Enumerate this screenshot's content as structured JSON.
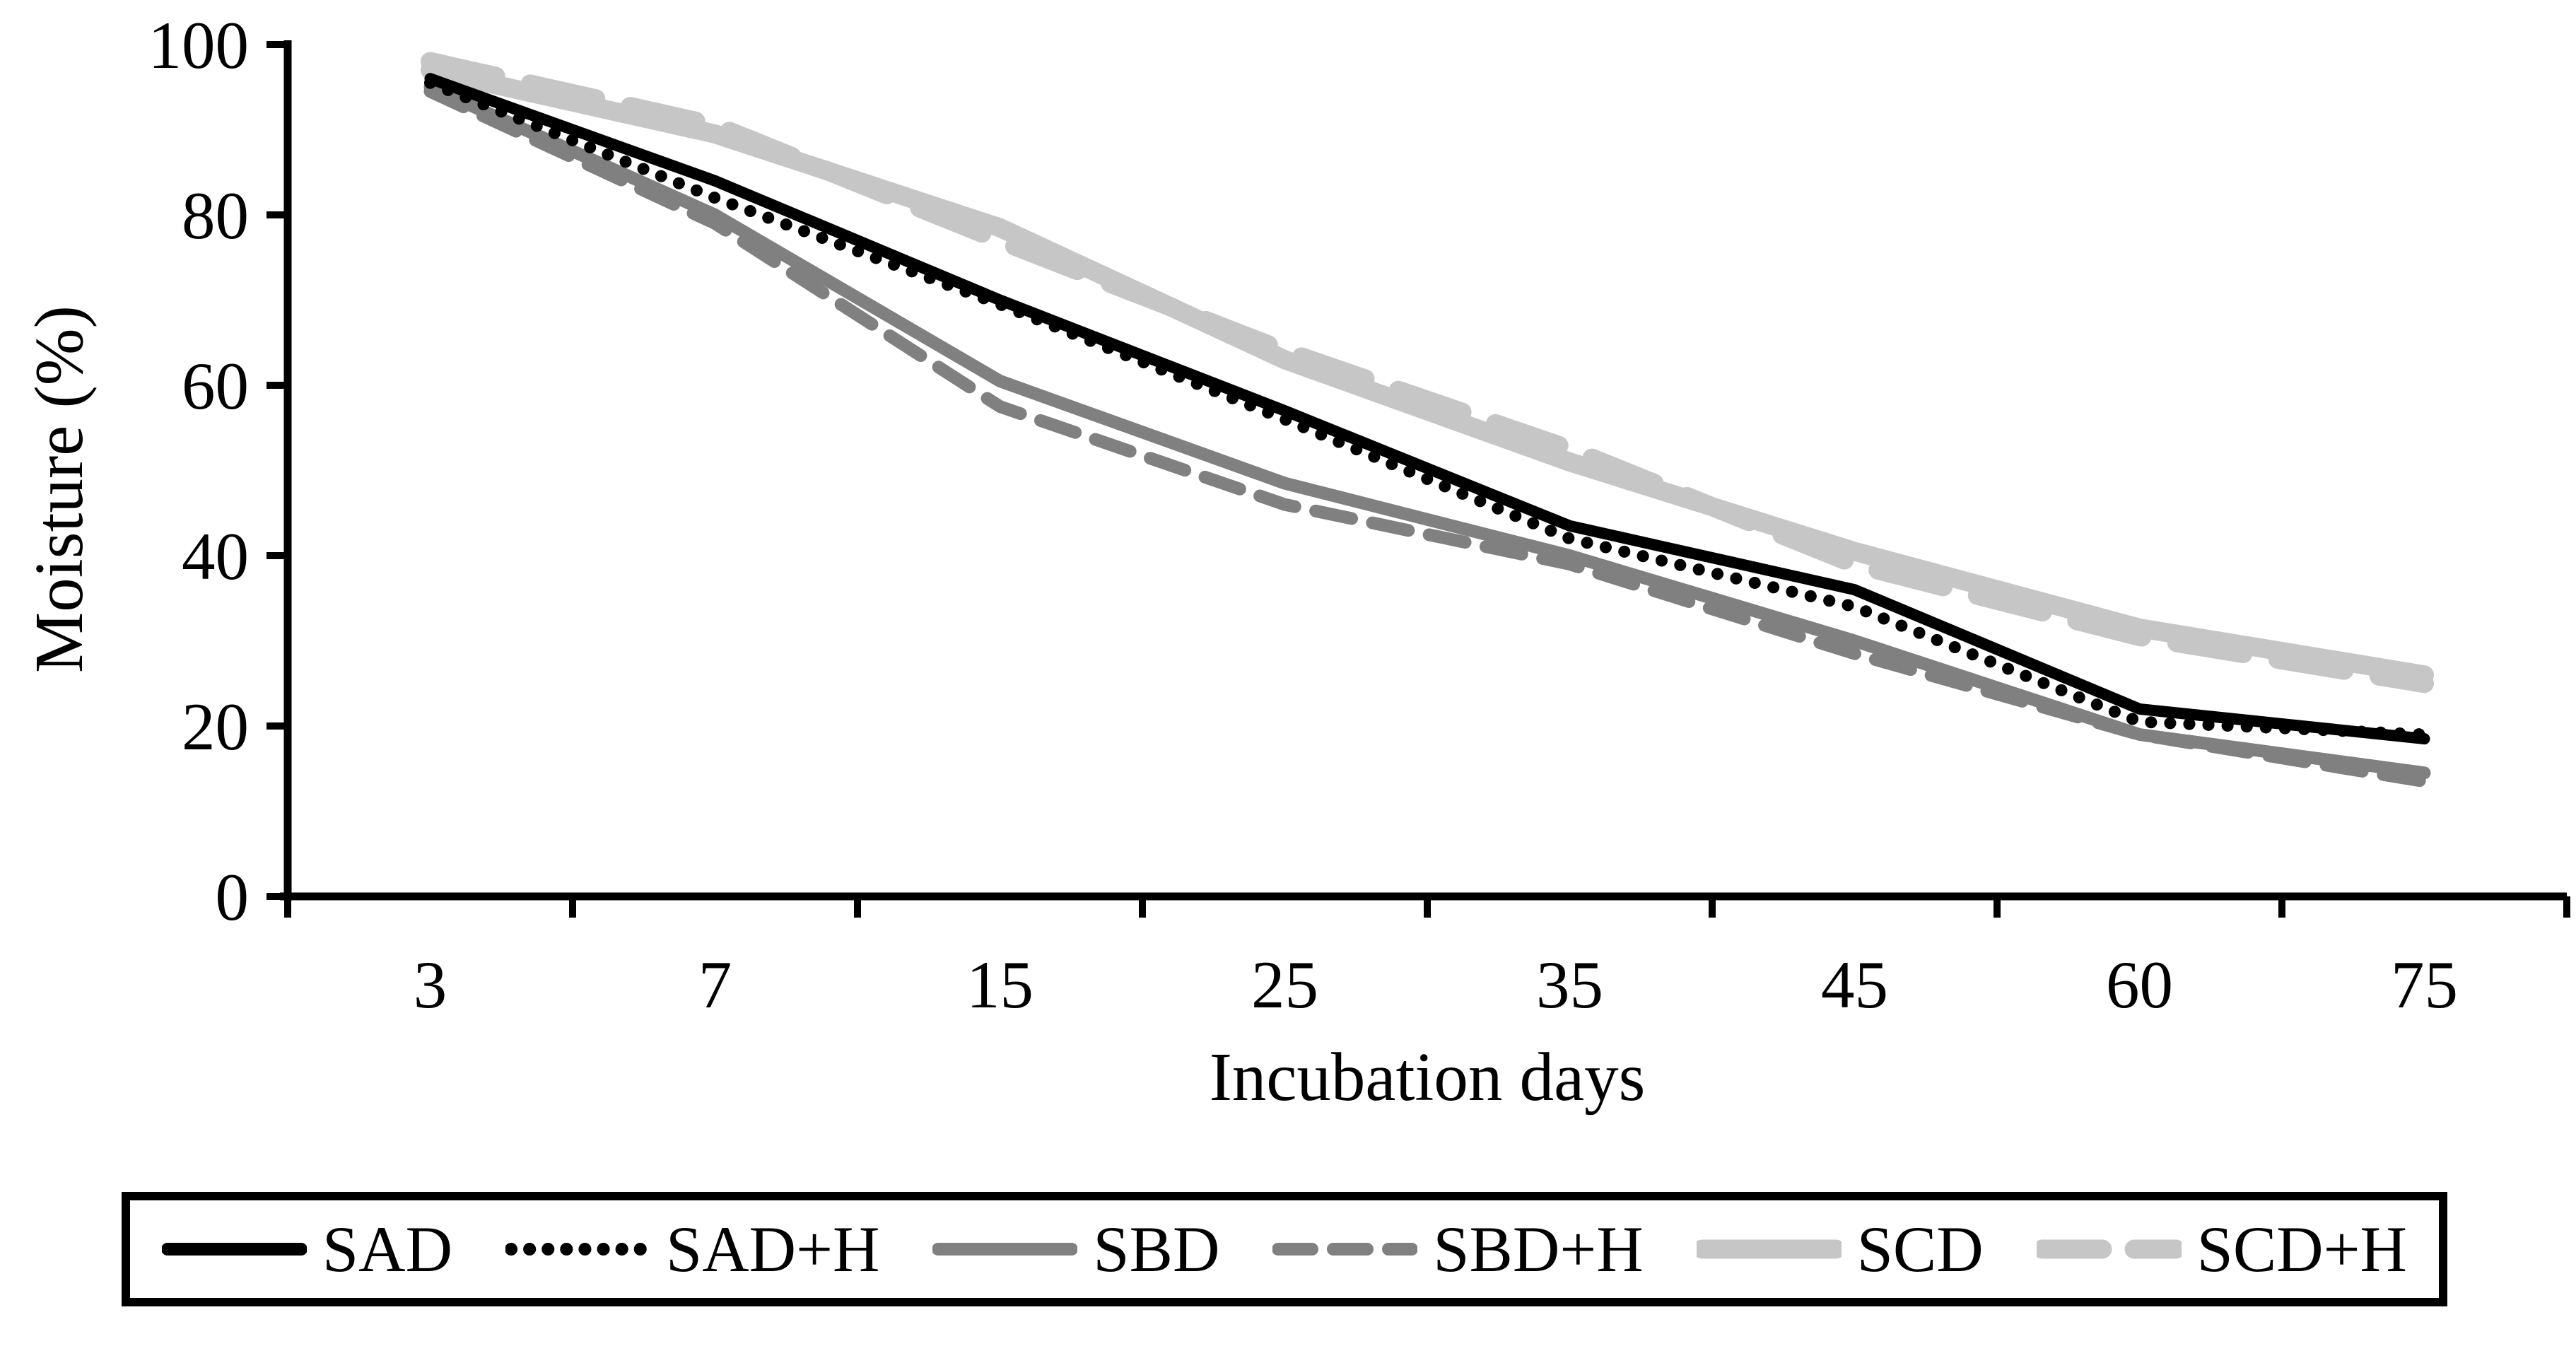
{
  "chart_data": {
    "type": "line",
    "title": "",
    "xlabel": "Incubation days",
    "ylabel": "Moisture (%)",
    "categories": [
      "3",
      "7",
      "15",
      "25",
      "35",
      "45",
      "60",
      "75"
    ],
    "yticks": [
      0,
      20,
      40,
      60,
      80,
      100
    ],
    "ylim": [
      0,
      100
    ],
    "grid": false,
    "legend_position": "bottom-box",
    "axis_color": "#000000",
    "background_color": "#ffffff",
    "series": [
      {
        "name": "SAD",
        "color": "#000000",
        "dash": "solid",
        "width": 16,
        "values": [
          96.0,
          84.0,
          70.0,
          57.0,
          43.5,
          36.0,
          22.0,
          18.5
        ]
      },
      {
        "name": "SAD+H",
        "color": "#000000",
        "dash": "dotted",
        "width": 17,
        "values": [
          95.5,
          82.0,
          69.5,
          56.0,
          42.0,
          34.0,
          20.5,
          19.0
        ]
      },
      {
        "name": "SBD",
        "color": "#808080",
        "dash": "solid",
        "width": 18,
        "values": [
          95.0,
          80.0,
          60.5,
          48.5,
          40.0,
          30.0,
          19.0,
          14.5
        ]
      },
      {
        "name": "SBD+H",
        "color": "#808080",
        "dash": "dashed",
        "width": 18,
        "values": [
          94.5,
          79.0,
          57.5,
          46.0,
          39.0,
          28.5,
          19.0,
          13.5
        ]
      },
      {
        "name": "SCD",
        "color": "#c6c6c6",
        "dash": "solid",
        "width": 27,
        "values": [
          97.0,
          89.5,
          78.5,
          63.0,
          51.0,
          40.5,
          31.5,
          26.0
        ]
      },
      {
        "name": "SCD+H",
        "color": "#c6c6c6",
        "dash": "long-dash",
        "width": 27,
        "values": [
          98.0,
          90.5,
          77.0,
          64.0,
          52.5,
          39.0,
          30.5,
          25.0
        ]
      }
    ]
  }
}
